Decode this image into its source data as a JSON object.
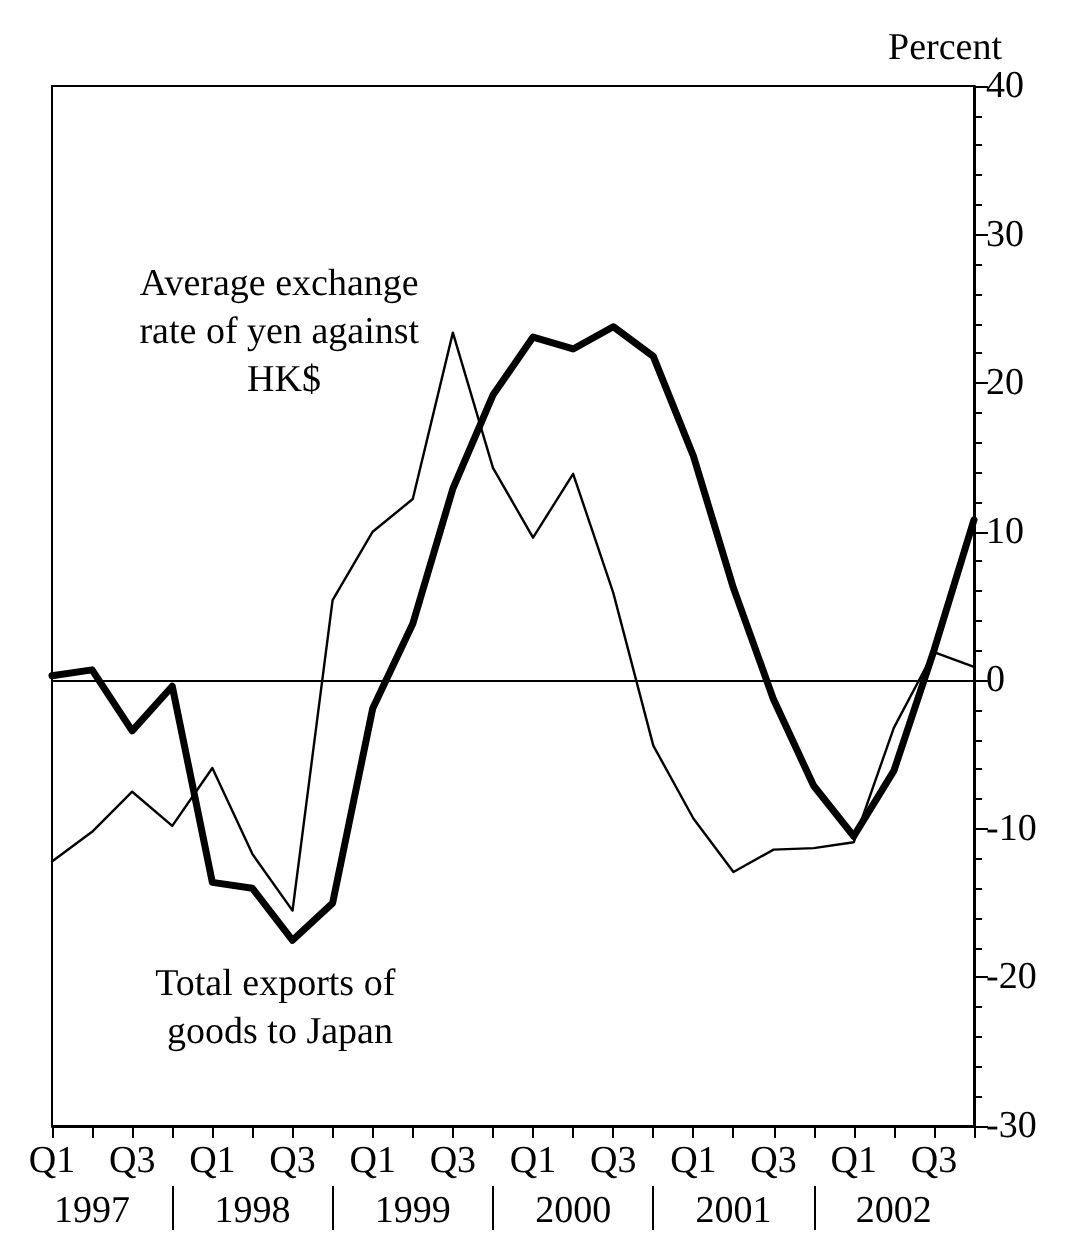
{
  "chart_data": {
    "type": "line",
    "ylabel": "Percent",
    "categories": [
      "Q1",
      null,
      "Q3",
      null,
      "Q1",
      null,
      "Q3",
      null,
      "Q1",
      null,
      "Q3",
      null,
      "Q1",
      null,
      "Q3",
      null,
      "Q1",
      null,
      "Q3",
      null,
      "Q1",
      null,
      "Q3",
      null
    ],
    "series": [
      {
        "name": "Average exchange rate of yen against HK$",
        "color": "#000000",
        "values": [
          -12.2,
          -10.2,
          -7.5,
          -9.8,
          -5.9,
          -11.7,
          -15.5,
          5.4,
          10,
          12.2,
          23.4,
          14.3,
          9.6,
          13.9,
          5.9,
          -4.4,
          -9.3,
          -12.9,
          -11.4,
          -11.3,
          -10.9,
          -3.2,
          1.9,
          0.9
        ]
      },
      {
        "name": "Total exports of goods to Japan",
        "color": "#000000",
        "values": [
          0.3,
          0.7,
          -3.4,
          -0.4,
          -13.6,
          -14,
          -17.5,
          -15,
          -1.9,
          3.8,
          12.9,
          19.2,
          23.1,
          22.3,
          23.8,
          21.8,
          15.1,
          6.2,
          -1.3,
          -7.1,
          -10.5,
          -6.1,
          2,
          10.8
        ]
      }
    ],
    "annotations": [
      "1997",
      "1998",
      "1999",
      "2000",
      "2001",
      "2002"
    ],
    "ylim": [
      -30,
      40
    ],
    "yticks": [
      -30,
      -20,
      -10,
      0,
      10,
      20,
      30,
      40
    ],
    "ref_lines": [
      {
        "axis": "y",
        "value": 0,
        "color": "#000000"
      }
    ],
    "grid": false,
    "legend": false,
    "marker": "none",
    "line_style": "solid"
  }
}
